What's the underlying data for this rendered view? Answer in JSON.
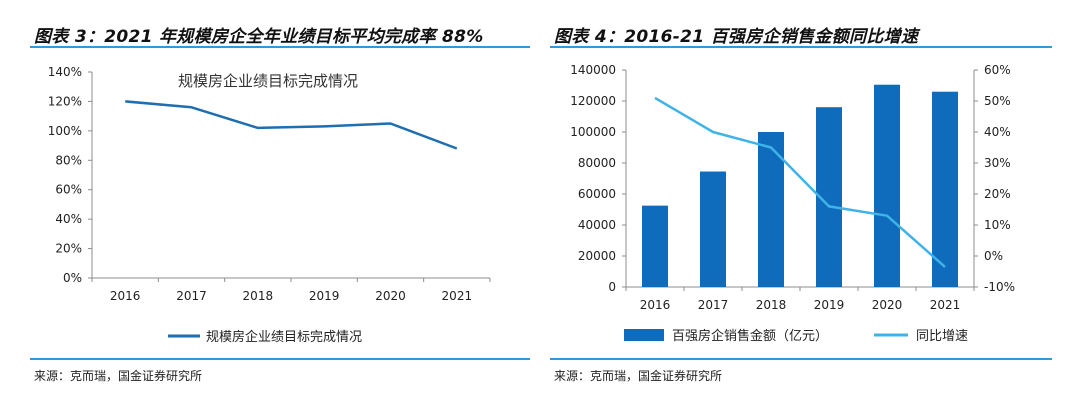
{
  "left": {
    "title": "图表 3：2021 年规模房企全年业绩目标平均完成率 88%",
    "source": "来源：克而瑞，国金证券研究所",
    "colors": {
      "line": "#1f6eb0",
      "rule": "#2e9bd6"
    }
  },
  "right": {
    "title": "图表 4：2016-21 百强房企销售金额同比增速",
    "source": "来源：克而瑞，国金证券研究所",
    "colors": {
      "bar": "#0f6cbd",
      "line": "#3fb3e6",
      "rule": "#2e9bd6"
    }
  },
  "chart_data": [
    {
      "type": "line",
      "title": "规模房企业绩目标完成情况",
      "categories": [
        "2016",
        "2017",
        "2018",
        "2019",
        "2020",
        "2021"
      ],
      "series": [
        {
          "name": "规模房企业绩目标完成情况",
          "values": [
            120,
            116,
            102,
            103,
            105,
            88
          ]
        }
      ],
      "ylim": [
        0,
        140
      ],
      "yticks": [
        "0%",
        "20%",
        "40%",
        "60%",
        "80%",
        "100%",
        "120%",
        "140%"
      ],
      "grid": false,
      "legend": "bottom"
    },
    {
      "type": "bar",
      "categories": [
        "2016",
        "2017",
        "2018",
        "2019",
        "2020",
        "2021"
      ],
      "series": [
        {
          "name": "百强房企销售金额（亿元）",
          "type": "bar",
          "axis": "left",
          "values": [
            52500,
            74500,
            100000,
            116000,
            130500,
            126000
          ]
        },
        {
          "name": "同比增速",
          "type": "line",
          "axis": "right",
          "values": [
            51,
            40,
            35,
            16,
            13,
            -3.5
          ]
        }
      ],
      "ylim_left": [
        0,
        140000
      ],
      "yticks_left": [
        "0",
        "20000",
        "40000",
        "60000",
        "80000",
        "100000",
        "120000",
        "140000"
      ],
      "ylim_right": [
        -10,
        60
      ],
      "yticks_right": [
        "-10%",
        "0%",
        "10%",
        "20%",
        "30%",
        "40%",
        "50%",
        "60%"
      ],
      "grid": false,
      "legend": "bottom"
    }
  ]
}
